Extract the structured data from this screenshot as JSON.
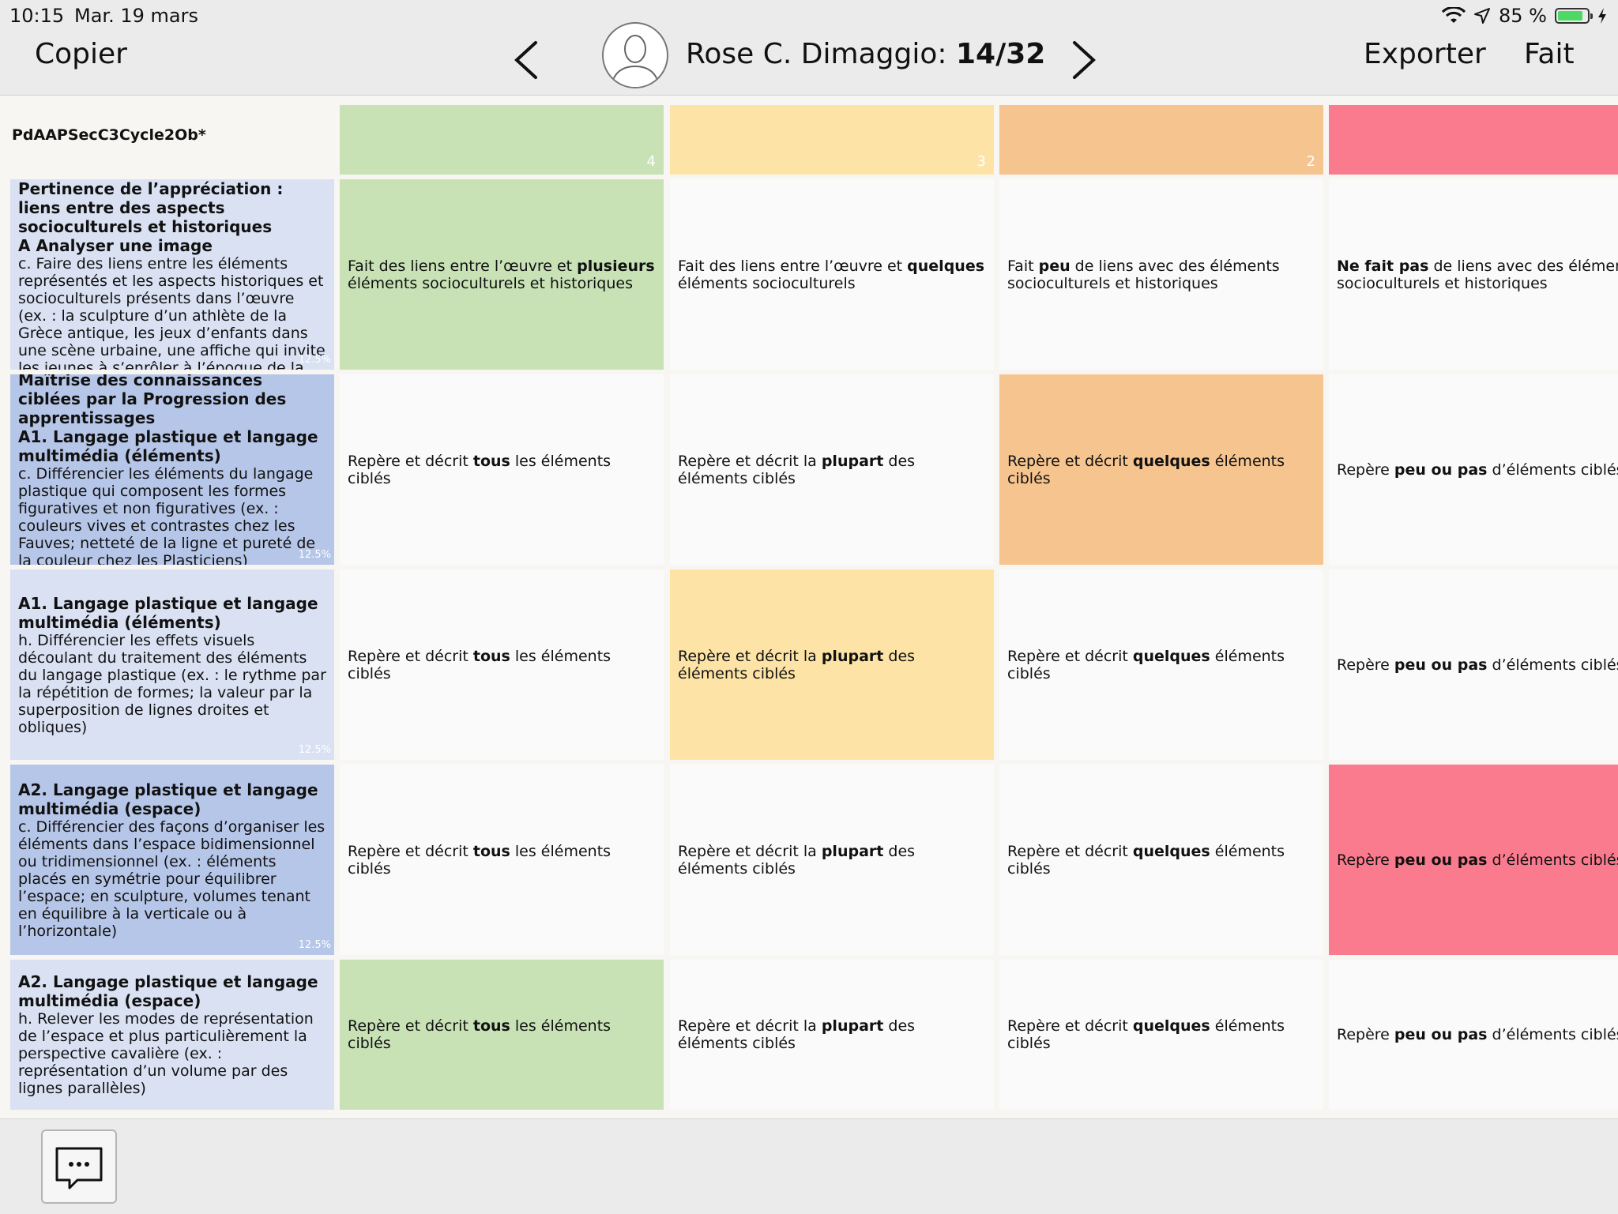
{
  "status": {
    "time": "10:15",
    "date": "Mar. 19 mars",
    "battery": "85 %",
    "battery_level": 0.85
  },
  "nav": {
    "copy_label": "Copier",
    "export_label": "Exporter",
    "done_label": "Fait",
    "student_name": "Rose C. Dimaggio:",
    "student_position": "14/32"
  },
  "rubric": {
    "code": "PdAAPSecC3Cycle2Ob*",
    "levels": [
      {
        "score": "4",
        "color": "#c8e2b6"
      },
      {
        "score": "3",
        "color": "#fde4a6"
      },
      {
        "score": "2",
        "color": "#f6c48f"
      },
      {
        "score": "",
        "color": "#fb7b8e"
      }
    ],
    "rows": [
      {
        "title": "Pertinence de l’appréciation : liens entre des aspects socioculturels et historiques",
        "subtitle": "A Analyser une image",
        "description": "c. Faire des liens entre les éléments représentés et les aspects historiques et socioculturels présents dans l’œuvre (ex. : la sculpture d’un athlète de la Grèce antique, les jeux d’enfants dans une scène urbaine, une affiche qui invite les jeunes à s’enrôler à l’époque de la guerre de",
        "weight": "12.5%",
        "selected": 0,
        "cells": [
          [
            "Fait des liens entre l’œuvre et ",
            "plusieurs",
            " éléments socioculturels et historiques"
          ],
          [
            "Fait des liens entre l’œuvre et ",
            "quelques",
            " éléments socioculturels"
          ],
          [
            "Fait ",
            "peu",
            " de  liens avec des éléments socioculturels et historiques"
          ],
          [
            "",
            "Ne fait pas",
            " de liens avec des éléments socioculturels et historiques"
          ]
        ]
      },
      {
        "title": "Maîtrise des connaissances ciblées par la Progression des apprentissages",
        "subtitle": "A1. Langage plastique et langage multimédia (éléments)",
        "description": "c. Différencier les éléments du langage plastique qui composent les formes figuratives et non figuratives (ex. : couleurs vives et contrastes chez les Fauves; netteté de la ligne et pureté de la couleur chez les Plasticiens)",
        "weight": "12.5%",
        "selected": 2,
        "cells": [
          [
            "Repère et décrit ",
            "tous",
            " les éléments ciblés"
          ],
          [
            "Repère et décrit la ",
            "plupart",
            " des éléments ciblés"
          ],
          [
            "Repère et décrit ",
            "quelques",
            " éléments ciblés"
          ],
          [
            "Repère ",
            "peu ou pas",
            " d’éléments ciblés"
          ]
        ]
      },
      {
        "title": "",
        "subtitle": "A1. Langage plastique et langage multimédia (éléments)",
        "description": "h. Différencier les effets visuels découlant du traitement des éléments du langage plastique (ex. : le rythme par la répétition de formes; la valeur par la superposition de lignes droites et obliques)",
        "weight": "12.5%",
        "selected": 1,
        "cells": [
          [
            "Repère et décrit ",
            "tous",
            " les éléments ciblés"
          ],
          [
            "Repère et décrit la ",
            "plupart",
            " des éléments ciblés"
          ],
          [
            "Repère et décrit ",
            "quelques",
            " éléments ciblés"
          ],
          [
            "Repère ",
            "peu ou pas",
            " d’éléments ciblés"
          ]
        ]
      },
      {
        "title": "",
        "subtitle": "A2. Langage plastique et langage multimédia (espace)",
        "description": "c. Différencier des façons d’organiser les éléments dans l’espace bidimensionnel ou tridimensionnel (ex. : éléments placés en symétrie pour équilibrer l’espace; en sculpture, volumes tenant en équilibre à la verticale ou à l’horizontale)",
        "weight": "12.5%",
        "selected": 3,
        "cells": [
          [
            "Repère et décrit ",
            "tous",
            " les éléments ciblés"
          ],
          [
            "Repère et décrit la ",
            "plupart",
            " des éléments ciblés"
          ],
          [
            "Repère et décrit ",
            "quelques",
            " éléments ciblés"
          ],
          [
            "Repère ",
            "peu ou pas",
            " d’éléments ciblés"
          ]
        ]
      },
      {
        "title": "",
        "subtitle": "A2. Langage plastique et langage multimédia (espace)",
        "description": "h. Relever les modes de représentation de l’espace et plus particulièrement la perspective cavalière (ex. : représentation d’un volume par des lignes parallèles)",
        "weight": "",
        "selected": 0,
        "cells": [
          [
            "Repère et décrit ",
            "tous",
            " les éléments ciblés"
          ],
          [
            "Repère et décrit la ",
            "plupart",
            " des éléments ciblés"
          ],
          [
            "Repère et décrit ",
            "quelques",
            " éléments ciblés"
          ],
          [
            "Repère ",
            "peu ou pas",
            " d’éléments ciblés"
          ]
        ]
      }
    ]
  }
}
